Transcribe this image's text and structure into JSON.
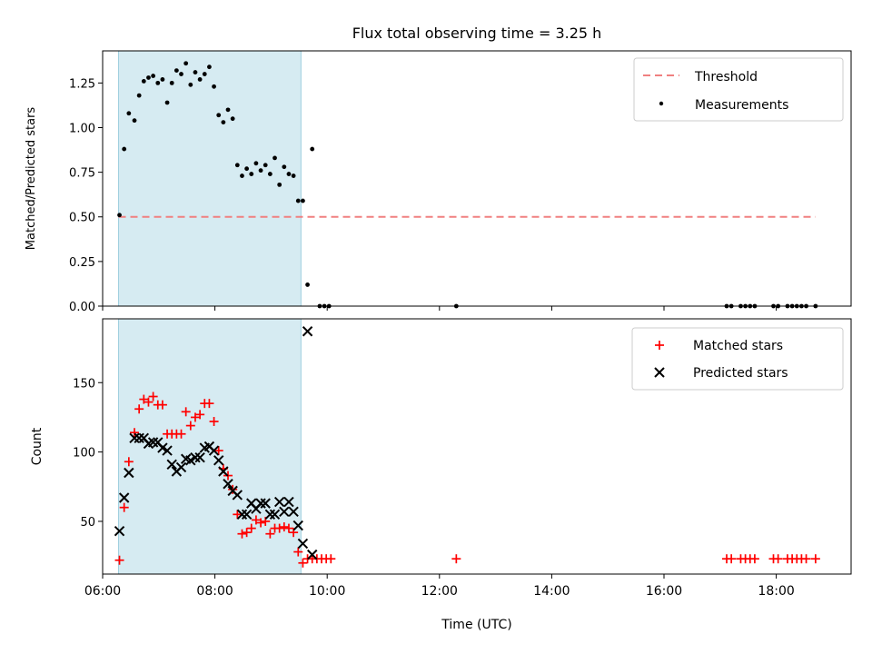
{
  "chart_data": [
    {
      "type": "scatter",
      "title": "Flux total observing time = 3.25 h",
      "xlabel": "",
      "ylabel": "Matched/Predicted stars",
      "xlim": [
        "06:00",
        "19:20"
      ],
      "ylim": [
        0,
        1.43
      ],
      "yticks": [
        "0.00",
        "0.25",
        "0.50",
        "0.75",
        "1.00",
        "1.25"
      ],
      "shaded_interval": [
        "06:17",
        "09:32"
      ],
      "legend_position": "top-right",
      "threshold": {
        "name": "Threshold",
        "value": 0.5,
        "x_start": "06:17",
        "x_end": "18:42",
        "color": "#f08080"
      },
      "series": [
        {
          "name": "Measurements",
          "color": "#000000",
          "points": [
            [
              "06:18",
              0.51
            ],
            [
              "06:23",
              0.88
            ],
            [
              "06:28",
              1.08
            ],
            [
              "06:34",
              1.04
            ],
            [
              "06:39",
              1.18
            ],
            [
              "06:44",
              1.26
            ],
            [
              "06:49",
              1.28
            ],
            [
              "06:54",
              1.29
            ],
            [
              "06:59",
              1.25
            ],
            [
              "07:04",
              1.27
            ],
            [
              "07:09",
              1.14
            ],
            [
              "07:14",
              1.25
            ],
            [
              "07:19",
              1.32
            ],
            [
              "07:24",
              1.3
            ],
            [
              "07:29",
              1.36
            ],
            [
              "07:34",
              1.24
            ],
            [
              "07:39",
              1.31
            ],
            [
              "07:44",
              1.27
            ],
            [
              "07:49",
              1.3
            ],
            [
              "07:54",
              1.34
            ],
            [
              "07:59",
              1.23
            ],
            [
              "08:04",
              1.07
            ],
            [
              "08:09",
              1.03
            ],
            [
              "08:14",
              1.1
            ],
            [
              "08:19",
              1.05
            ],
            [
              "08:24",
              0.79
            ],
            [
              "08:29",
              0.73
            ],
            [
              "08:34",
              0.77
            ],
            [
              "08:39",
              0.74
            ],
            [
              "08:44",
              0.8
            ],
            [
              "08:49",
              0.76
            ],
            [
              "08:54",
              0.79
            ],
            [
              "08:59",
              0.74
            ],
            [
              "09:04",
              0.83
            ],
            [
              "09:09",
              0.68
            ],
            [
              "09:14",
              0.78
            ],
            [
              "09:19",
              0.74
            ],
            [
              "09:24",
              0.73
            ],
            [
              "09:29",
              0.59
            ],
            [
              "09:34",
              0.59
            ],
            [
              "09:39",
              0.12
            ],
            [
              "09:44",
              0.88
            ],
            [
              "09:52",
              0.0
            ],
            [
              "09:57",
              0.0
            ],
            [
              "10:02",
              0.0
            ],
            [
              "12:18",
              0.0
            ],
            [
              "17:07",
              0.0
            ],
            [
              "17:12",
              0.0
            ],
            [
              "17:22",
              0.0
            ],
            [
              "17:27",
              0.0
            ],
            [
              "17:32",
              0.0
            ],
            [
              "17:37",
              0.0
            ],
            [
              "17:57",
              0.0
            ],
            [
              "18:02",
              0.0
            ],
            [
              "18:12",
              0.0
            ],
            [
              "18:17",
              0.0
            ],
            [
              "18:22",
              0.0
            ],
            [
              "18:27",
              0.0
            ],
            [
              "18:32",
              0.0
            ],
            [
              "18:42",
              0.0
            ]
          ]
        }
      ]
    },
    {
      "type": "scatter",
      "title": "",
      "xlabel": "Time (UTC)",
      "ylabel": "Count",
      "xlim": [
        "06:00",
        "19:20"
      ],
      "ylim": [
        12,
        196
      ],
      "yticks": [
        "50",
        "100",
        "150"
      ],
      "xticks": [
        "06:00",
        "08:00",
        "10:00",
        "12:00",
        "14:00",
        "16:00",
        "18:00"
      ],
      "shaded_interval": [
        "06:17",
        "09:32"
      ],
      "legend_position": "top-right",
      "series": [
        {
          "name": "Matched stars",
          "marker": "plus",
          "color": "#ff0000",
          "points": [
            [
              "06:18",
              22
            ],
            [
              "06:23",
              60
            ],
            [
              "06:28",
              93
            ],
            [
              "06:34",
              114
            ],
            [
              "06:39",
              131
            ],
            [
              "06:44",
              138
            ],
            [
              "06:49",
              136
            ],
            [
              "06:54",
              140
            ],
            [
              "06:59",
              134
            ],
            [
              "07:04",
              134
            ],
            [
              "07:09",
              113
            ],
            [
              "07:14",
              113
            ],
            [
              "07:19",
              113
            ],
            [
              "07:24",
              113
            ],
            [
              "07:29",
              129
            ],
            [
              "07:34",
              119
            ],
            [
              "07:39",
              125
            ],
            [
              "07:44",
              127
            ],
            [
              "07:49",
              135
            ],
            [
              "07:54",
              135
            ],
            [
              "07:59",
              122
            ],
            [
              "08:04",
              101
            ],
            [
              "08:09",
              88
            ],
            [
              "08:14",
              83
            ],
            [
              "08:19",
              73
            ],
            [
              "08:24",
              55
            ],
            [
              "08:29",
              41
            ],
            [
              "08:34",
              42
            ],
            [
              "08:39",
              45
            ],
            [
              "08:44",
              51
            ],
            [
              "08:49",
              49
            ],
            [
              "08:54",
              50
            ],
            [
              "08:59",
              41
            ],
            [
              "09:04",
              45
            ],
            [
              "09:09",
              45
            ],
            [
              "09:14",
              46
            ],
            [
              "09:19",
              45
            ],
            [
              "09:24",
              42
            ],
            [
              "09:29",
              28
            ],
            [
              "09:34",
              20
            ],
            [
              "09:39",
              23
            ],
            [
              "09:44",
              23
            ],
            [
              "09:49",
              23
            ],
            [
              "09:54",
              23
            ],
            [
              "09:59",
              23
            ],
            [
              "10:04",
              23
            ],
            [
              "12:18",
              23
            ],
            [
              "17:07",
              23
            ],
            [
              "17:12",
              23
            ],
            [
              "17:22",
              23
            ],
            [
              "17:27",
              23
            ],
            [
              "17:32",
              23
            ],
            [
              "17:37",
              23
            ],
            [
              "17:57",
              23
            ],
            [
              "18:02",
              23
            ],
            [
              "18:12",
              23
            ],
            [
              "18:17",
              23
            ],
            [
              "18:22",
              23
            ],
            [
              "18:27",
              23
            ],
            [
              "18:32",
              23
            ],
            [
              "18:42",
              23
            ]
          ]
        },
        {
          "name": "Predicted stars",
          "marker": "x",
          "color": "#000000",
          "points": [
            [
              "06:18",
              43
            ],
            [
              "06:23",
              67
            ],
            [
              "06:28",
              85
            ],
            [
              "06:34",
              110
            ],
            [
              "06:39",
              110
            ],
            [
              "06:44",
              110
            ],
            [
              "06:49",
              106
            ],
            [
              "06:54",
              107
            ],
            [
              "06:59",
              107
            ],
            [
              "07:04",
              103
            ],
            [
              "07:09",
              101
            ],
            [
              "07:14",
              91
            ],
            [
              "07:19",
              86
            ],
            [
              "07:24",
              89
            ],
            [
              "07:29",
              95
            ],
            [
              "07:34",
              94
            ],
            [
              "07:39",
              96
            ],
            [
              "07:44",
              96
            ],
            [
              "07:49",
              103
            ],
            [
              "07:54",
              104
            ],
            [
              "07:59",
              101
            ],
            [
              "08:04",
              94
            ],
            [
              "08:09",
              86
            ],
            [
              "08:14",
              77
            ],
            [
              "08:19",
              72
            ],
            [
              "08:24",
              69
            ],
            [
              "08:29",
              55
            ],
            [
              "08:34",
              55
            ],
            [
              "08:39",
              63
            ],
            [
              "08:44",
              59
            ],
            [
              "08:49",
              63
            ],
            [
              "08:54",
              63
            ],
            [
              "08:59",
              55
            ],
            [
              "09:04",
              55
            ],
            [
              "09:09",
              64
            ],
            [
              "09:14",
              57
            ],
            [
              "09:19",
              64
            ],
            [
              "09:24",
              57
            ],
            [
              "09:29",
              47
            ],
            [
              "09:34",
              34
            ],
            [
              "09:39",
              187
            ],
            [
              "09:44",
              26
            ]
          ]
        }
      ]
    }
  ]
}
